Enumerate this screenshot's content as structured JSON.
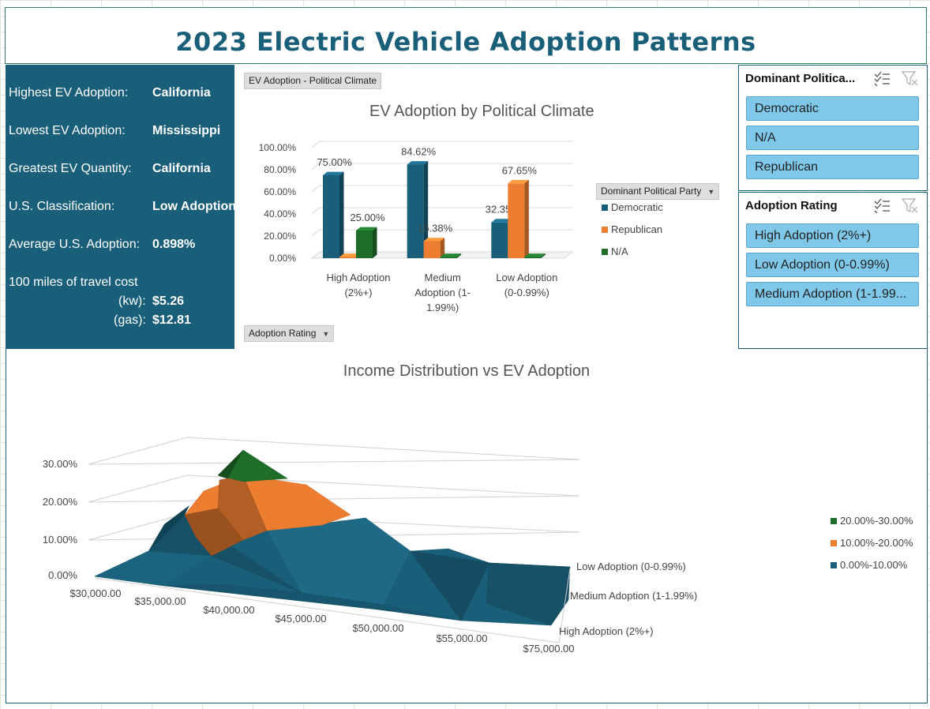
{
  "title": "2023 Electric Vehicle Adoption Patterns",
  "stats": {
    "highest_label": "Highest EV Adoption:",
    "highest_value": "California",
    "lowest_label": "Lowest EV Adoption:",
    "lowest_value": "Mississippi",
    "greatest_label": "Greatest EV Quantity:",
    "greatest_value": "California",
    "class_label": "U.S. Classification:",
    "class_value": "Low Adoption",
    "avg_label": "Average U.S. Adoption:",
    "avg_value": "0.898%",
    "cost_label": "100 miles of travel cost",
    "kw_label": "(kw):",
    "kw_value": "$5.26",
    "gas_label": "(gas):",
    "gas_value": "$12.81"
  },
  "bar_panel": {
    "filter_button": "EV Adoption - Political Climate",
    "axis_button": "Adoption Rating",
    "legend_button": "Dominant Political Party"
  },
  "slicers": {
    "party": {
      "header": "Dominant Politica...",
      "items": [
        "Democratic",
        "N/A",
        "Republican"
      ]
    },
    "rating": {
      "header": "Adoption Rating",
      "items": [
        "High Adoption (2%+)",
        "Low Adoption (0-0.99%)",
        "Medium Adoption (1-1.99..."
      ]
    }
  },
  "chart_data": [
    {
      "type": "bar",
      "title": "EV Adoption by Political Climate",
      "categories": [
        [
          "High Adoption",
          "(2%+)"
        ],
        [
          "Medium",
          "Adoption (1-",
          "1.99%)"
        ],
        [
          "Low Adoption",
          "(0-0.99%)"
        ]
      ],
      "series": [
        {
          "name": "Democratic",
          "color": "#1a5f7a",
          "values": [
            75.0,
            84.62,
            32.35
          ],
          "labels": [
            "75.00%",
            "84.62%",
            "32.35%"
          ]
        },
        {
          "name": "Republican",
          "color": "#ed7d31",
          "values": [
            0,
            15.38,
            67.65
          ],
          "labels": [
            "",
            "15.38%",
            "67.65%"
          ]
        },
        {
          "name": "N/A",
          "color": "#1e6e2a",
          "values": [
            25.0,
            0,
            0
          ],
          "labels": [
            "25.00%",
            "",
            ""
          ]
        }
      ],
      "yticks": [
        "100.00%",
        "80.00%",
        "60.00%",
        "40.00%",
        "20.00%",
        "0.00%"
      ],
      "ylim": [
        0,
        100
      ],
      "grid": true,
      "legend": "right"
    },
    {
      "type": "surface",
      "title": "Income Distribution vs EV Adoption",
      "x": [
        "$30,000.00",
        "$35,000.00",
        "$40,000.00",
        "$45,000.00",
        "$50,000.00",
        "$55,000.00",
        "$75,000.00"
      ],
      "depth": [
        "Low Adoption (0-0.99%)",
        "Medium Adoption (1-1.99%)",
        "High Adoption (2%+)"
      ],
      "zticks": [
        "30.00%",
        "20.00%",
        "10.00%",
        "0.00%"
      ],
      "legend": [
        {
          "name": "20.00%-30.00%",
          "color": "#1e6e2a"
        },
        {
          "name": "10.00%-20.00%",
          "color": "#ed7d31"
        },
        {
          "name": "0.00%-10.00%",
          "color": "#1a5f7a"
        }
      ]
    }
  ]
}
